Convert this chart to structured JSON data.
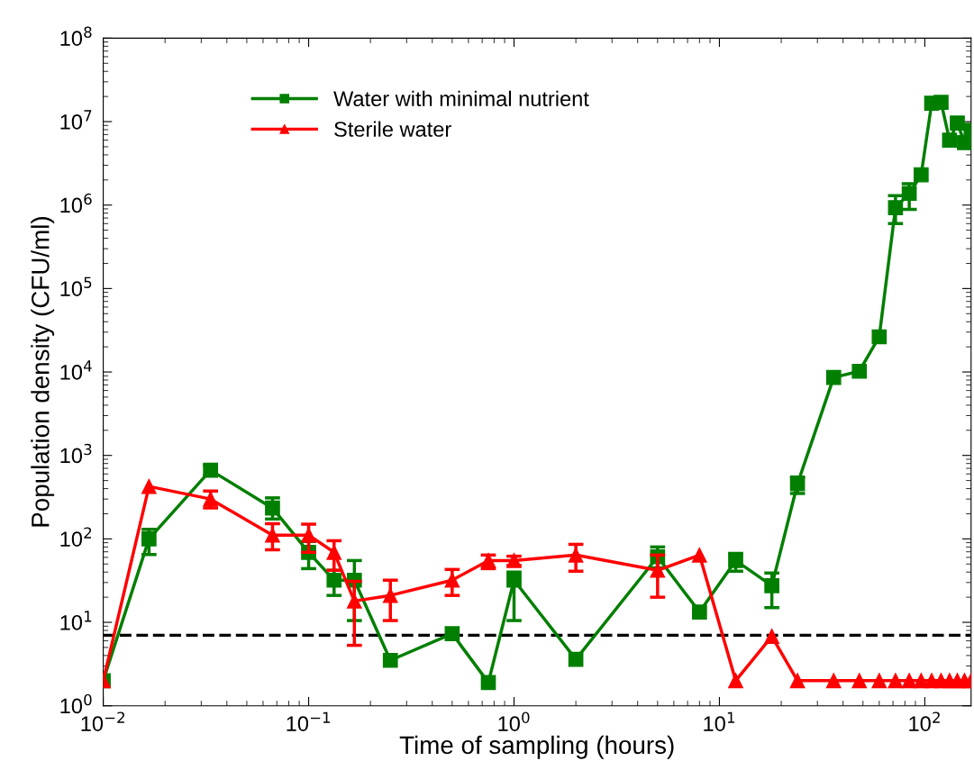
{
  "chart_data": {
    "type": "line",
    "xlabel": "Time of sampling (hours)",
    "ylabel": "Population density (CFU/ml)",
    "log": "xy",
    "xlim": [
      0.01,
      168
    ],
    "ylim": [
      1,
      100000000
    ],
    "xticks": [
      {
        "value": 0.01,
        "label": "10$^{−2}$"
      },
      {
        "value": 0.1,
        "label": "10$^{−1}$"
      },
      {
        "value": 1,
        "label": "10$^{0}$"
      },
      {
        "value": 10,
        "label": "10$^{1}$"
      },
      {
        "value": 100,
        "label": "10$^{2}$"
      }
    ],
    "yticks": [
      {
        "value": 1,
        "label": "10$^{0}$"
      },
      {
        "value": 10,
        "label": "10$^{1}$"
      },
      {
        "value": 100,
        "label": "10$^{2}$"
      },
      {
        "value": 1000,
        "label": "10$^{3}$"
      },
      {
        "value": 10000,
        "label": "10$^{4}$"
      },
      {
        "value": 100000,
        "label": "10$^{5}$"
      },
      {
        "value": 1000000,
        "label": "10$^{6}$"
      },
      {
        "value": 10000000,
        "label": "10$^{7}$"
      },
      {
        "value": 100000000,
        "label": "10$^{8}$"
      }
    ],
    "grid": false,
    "legend": "top",
    "line_style": "solid",
    "ref_lines": [
      {
        "axis": "y",
        "value": 7,
        "color": "#000000",
        "line_style": "dashed"
      }
    ],
    "series": [
      {
        "name": "Water with minimal nutrient",
        "color": "#007f00",
        "marker": "square",
        "x": [
          0.01,
          0.0167,
          0.0333,
          0.0667,
          0.1,
          0.133,
          0.167,
          0.25,
          0.5,
          0.75,
          1,
          2,
          5,
          8,
          12,
          18,
          24,
          36,
          48,
          60,
          72,
          84,
          96,
          108,
          120,
          132,
          144,
          156,
          168
        ],
        "values": [
          2,
          100,
          665,
          234,
          69,
          32,
          32,
          3.5,
          7.3,
          1.9,
          32,
          3.6,
          61,
          13.3,
          55,
          27.5,
          457,
          8600,
          10200,
          26400,
          930000,
          1380000,
          2300000,
          16600000,
          17000000,
          6000000,
          9600000,
          5600000,
          7900000
        ],
        "errors": [
          null,
          [
            65,
            130
          ],
          [
            580,
            760
          ],
          [
            173,
            310
          ],
          [
            44,
            93
          ],
          [
            21,
            42
          ],
          [
            10.5,
            55
          ],
          null,
          null,
          null,
          [
            10.5,
            40
          ],
          null,
          [
            45,
            80
          ],
          null,
          [
            41,
            67
          ],
          [
            15,
            39
          ],
          [
            350,
            550
          ],
          null,
          null,
          null,
          [
            600000,
            1300000
          ],
          [
            890000,
            1800000
          ],
          null,
          null,
          null,
          null,
          null,
          null,
          null
        ]
      },
      {
        "name": "Sterile water",
        "color": "#ff0000",
        "marker": "triangle",
        "x": [
          0.01,
          0.0167,
          0.0333,
          0.0667,
          0.1,
          0.133,
          0.167,
          0.25,
          0.5,
          0.75,
          1,
          2,
          5,
          8,
          12,
          18,
          24,
          36,
          48,
          60,
          72,
          84,
          96,
          108,
          120,
          132,
          144,
          156,
          168
        ],
        "values": [
          2,
          425,
          300,
          111,
          111,
          69,
          18,
          21,
          32,
          55,
          55,
          64,
          42,
          64,
          2,
          6.8,
          2,
          2,
          2,
          2,
          2,
          2,
          2,
          2,
          2,
          2,
          2,
          2,
          2
        ],
        "errors": [
          null,
          null,
          [
            235,
            375
          ],
          [
            74,
            152
          ],
          [
            69,
            150
          ],
          [
            42,
            95
          ],
          [
            5.3,
            31
          ],
          [
            10.5,
            32
          ],
          [
            21,
            43
          ],
          [
            44,
            64
          ],
          [
            48,
            62
          ],
          [
            41,
            86
          ],
          [
            20,
            64
          ],
          null,
          null,
          null,
          null,
          null,
          null,
          null,
          null,
          null,
          null,
          null,
          null,
          null,
          null,
          null,
          null
        ]
      }
    ]
  }
}
